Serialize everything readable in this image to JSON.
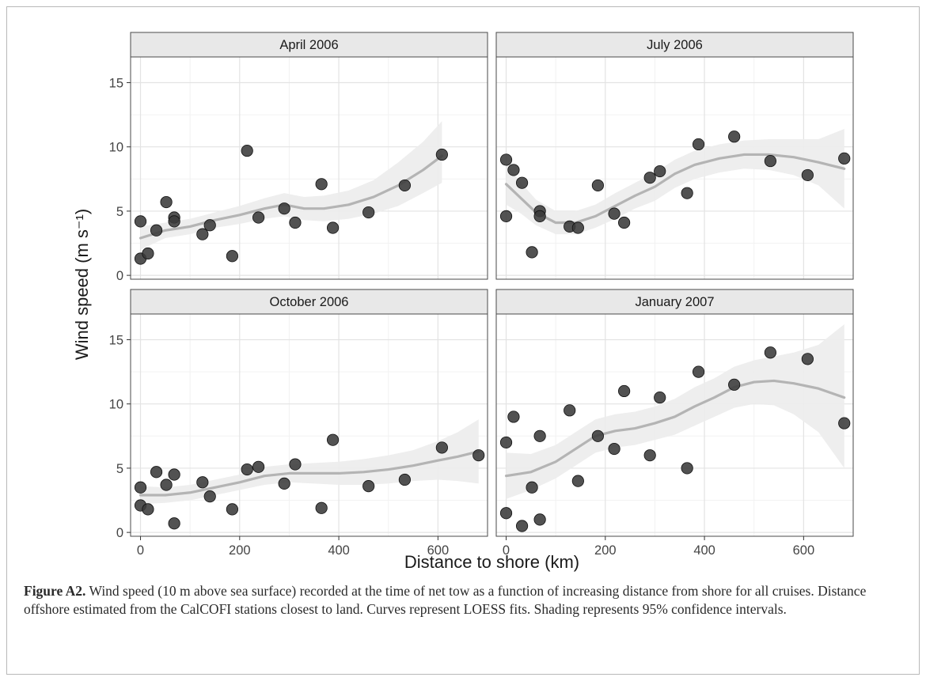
{
  "figure": {
    "caption_label": "Figure A2.",
    "caption_text": "Wind speed (10 m above sea surface) recorded at the time of net tow as a function of increasing distance from shore for all cruises. Distance offshore estimated from the CalCOFI stations closest to land. Curves represent LOESS fits. Shading represents 95% confidence intervals."
  },
  "chart_data": {
    "type": "scatter",
    "xlabel": "Distance to shore (km)",
    "ylabel": "Wind speed (m s⁻¹)",
    "xlim": [
      -20,
      700
    ],
    "ylim": [
      -0.3,
      17
    ],
    "x_ticks": [
      0,
      200,
      400,
      600
    ],
    "y_ticks": [
      0,
      5,
      10,
      15
    ],
    "grid": true,
    "colors": {
      "point": "#3a3a3a",
      "fit_line": "#b4b4b4",
      "ci_band": "#ececec",
      "strip": "#e8e8e8"
    },
    "panels": [
      {
        "title": "April 2006",
        "points": [
          [
            0,
            4.2
          ],
          [
            0,
            1.3
          ],
          [
            15,
            1.7
          ],
          [
            32,
            3.5
          ],
          [
            52,
            5.7
          ],
          [
            68,
            4.5
          ],
          [
            68,
            4.2
          ],
          [
            125,
            3.2
          ],
          [
            140,
            3.9
          ],
          [
            185,
            1.5
          ],
          [
            215,
            9.7
          ],
          [
            238,
            4.5
          ],
          [
            290,
            5.2
          ],
          [
            312,
            4.1
          ],
          [
            365,
            7.1
          ],
          [
            388,
            3.7
          ],
          [
            460,
            4.9
          ],
          [
            533,
            7.0
          ],
          [
            608,
            9.4
          ]
        ],
        "fit": [
          [
            0,
            2.9
          ],
          [
            50,
            3.5
          ],
          [
            100,
            3.8
          ],
          [
            150,
            4.3
          ],
          [
            200,
            4.7
          ],
          [
            250,
            5.2
          ],
          [
            290,
            5.5
          ],
          [
            330,
            5.2
          ],
          [
            370,
            5.2
          ],
          [
            420,
            5.5
          ],
          [
            470,
            6.1
          ],
          [
            520,
            7.0
          ],
          [
            570,
            8.2
          ],
          [
            608,
            9.3
          ]
        ],
        "ci_lower": [
          [
            0,
            2.0
          ],
          [
            50,
            2.9
          ],
          [
            100,
            3.2
          ],
          [
            150,
            3.7
          ],
          [
            200,
            4.0
          ],
          [
            250,
            4.4
          ],
          [
            290,
            4.6
          ],
          [
            330,
            4.3
          ],
          [
            370,
            4.2
          ],
          [
            420,
            4.4
          ],
          [
            470,
            4.8
          ],
          [
            520,
            5.4
          ],
          [
            570,
            6.4
          ],
          [
            608,
            7.2
          ]
        ],
        "ci_upper": [
          [
            0,
            3.8
          ],
          [
            50,
            4.1
          ],
          [
            100,
            4.4
          ],
          [
            150,
            4.9
          ],
          [
            200,
            5.4
          ],
          [
            250,
            6.0
          ],
          [
            290,
            6.4
          ],
          [
            330,
            6.1
          ],
          [
            370,
            6.2
          ],
          [
            420,
            6.6
          ],
          [
            470,
            7.4
          ],
          [
            520,
            8.8
          ],
          [
            570,
            10.4
          ],
          [
            608,
            12.0
          ]
        ]
      },
      {
        "title": "July 2006",
        "points": [
          [
            0,
            9.0
          ],
          [
            0,
            4.6
          ],
          [
            15,
            8.2
          ],
          [
            32,
            7.2
          ],
          [
            52,
            1.8
          ],
          [
            68,
            5.0
          ],
          [
            68,
            4.6
          ],
          [
            128,
            3.8
          ],
          [
            145,
            3.7
          ],
          [
            185,
            7.0
          ],
          [
            218,
            4.8
          ],
          [
            238,
            4.1
          ],
          [
            290,
            7.6
          ],
          [
            310,
            8.1
          ],
          [
            365,
            6.4
          ],
          [
            388,
            10.2
          ],
          [
            460,
            10.8
          ],
          [
            533,
            8.9
          ],
          [
            608,
            7.8
          ],
          [
            682,
            9.1
          ]
        ],
        "fit": [
          [
            0,
            7.1
          ],
          [
            30,
            6.0
          ],
          [
            60,
            4.9
          ],
          [
            100,
            4.1
          ],
          [
            140,
            4.1
          ],
          [
            180,
            4.6
          ],
          [
            220,
            5.4
          ],
          [
            260,
            6.2
          ],
          [
            300,
            6.9
          ],
          [
            340,
            7.9
          ],
          [
            380,
            8.6
          ],
          [
            430,
            9.1
          ],
          [
            480,
            9.4
          ],
          [
            530,
            9.4
          ],
          [
            580,
            9.2
          ],
          [
            630,
            8.8
          ],
          [
            682,
            8.3
          ]
        ],
        "ci_lower": [
          [
            0,
            5.5
          ],
          [
            30,
            4.8
          ],
          [
            60,
            3.9
          ],
          [
            100,
            3.2
          ],
          [
            140,
            3.2
          ],
          [
            180,
            3.7
          ],
          [
            220,
            4.4
          ],
          [
            260,
            5.2
          ],
          [
            300,
            5.8
          ],
          [
            340,
            6.8
          ],
          [
            380,
            7.5
          ],
          [
            430,
            8.0
          ],
          [
            480,
            8.3
          ],
          [
            530,
            8.2
          ],
          [
            580,
            7.8
          ],
          [
            630,
            7.0
          ],
          [
            682,
            5.2
          ]
        ],
        "ci_upper": [
          [
            0,
            8.7
          ],
          [
            30,
            7.2
          ],
          [
            60,
            5.9
          ],
          [
            100,
            5.0
          ],
          [
            140,
            5.0
          ],
          [
            180,
            5.5
          ],
          [
            220,
            6.4
          ],
          [
            260,
            7.2
          ],
          [
            300,
            8.0
          ],
          [
            340,
            9.0
          ],
          [
            380,
            9.7
          ],
          [
            430,
            10.2
          ],
          [
            480,
            10.5
          ],
          [
            530,
            10.6
          ],
          [
            580,
            10.6
          ],
          [
            630,
            10.6
          ],
          [
            682,
            11.4
          ]
        ]
      },
      {
        "title": "October 2006",
        "points": [
          [
            0,
            3.5
          ],
          [
            0,
            2.1
          ],
          [
            15,
            1.8
          ],
          [
            32,
            4.7
          ],
          [
            52,
            3.7
          ],
          [
            68,
            4.5
          ],
          [
            68,
            0.7
          ],
          [
            125,
            3.9
          ],
          [
            140,
            2.8
          ],
          [
            185,
            1.8
          ],
          [
            215,
            4.9
          ],
          [
            238,
            5.1
          ],
          [
            290,
            3.8
          ],
          [
            312,
            5.3
          ],
          [
            365,
            1.9
          ],
          [
            388,
            7.2
          ],
          [
            460,
            3.6
          ],
          [
            533,
            4.1
          ],
          [
            608,
            6.6
          ],
          [
            682,
            6.0
          ]
        ],
        "fit": [
          [
            0,
            2.9
          ],
          [
            50,
            2.9
          ],
          [
            100,
            3.1
          ],
          [
            150,
            3.5
          ],
          [
            200,
            3.9
          ],
          [
            250,
            4.4
          ],
          [
            300,
            4.6
          ],
          [
            350,
            4.6
          ],
          [
            400,
            4.6
          ],
          [
            450,
            4.7
          ],
          [
            500,
            4.9
          ],
          [
            550,
            5.2
          ],
          [
            600,
            5.6
          ],
          [
            640,
            5.9
          ],
          [
            682,
            6.3
          ]
        ],
        "ci_lower": [
          [
            0,
            2.2
          ],
          [
            50,
            2.3
          ],
          [
            100,
            2.5
          ],
          [
            150,
            2.9
          ],
          [
            200,
            3.3
          ],
          [
            250,
            3.7
          ],
          [
            300,
            3.9
          ],
          [
            350,
            3.8
          ],
          [
            400,
            3.7
          ],
          [
            450,
            3.7
          ],
          [
            500,
            3.8
          ],
          [
            550,
            4.0
          ],
          [
            600,
            4.1
          ],
          [
            640,
            4.0
          ],
          [
            682,
            3.8
          ]
        ],
        "ci_upper": [
          [
            0,
            3.6
          ],
          [
            50,
            3.5
          ],
          [
            100,
            3.7
          ],
          [
            150,
            4.1
          ],
          [
            200,
            4.5
          ],
          [
            250,
            5.1
          ],
          [
            300,
            5.3
          ],
          [
            350,
            5.4
          ],
          [
            400,
            5.5
          ],
          [
            450,
            5.7
          ],
          [
            500,
            6.0
          ],
          [
            550,
            6.4
          ],
          [
            600,
            7.1
          ],
          [
            640,
            7.8
          ],
          [
            682,
            8.8
          ]
        ]
      },
      {
        "title": "January 2007",
        "points": [
          [
            0,
            7.0
          ],
          [
            0,
            1.5
          ],
          [
            15,
            9.0
          ],
          [
            32,
            0.5
          ],
          [
            52,
            3.5
          ],
          [
            68,
            7.5
          ],
          [
            68,
            1.0
          ],
          [
            128,
            9.5
          ],
          [
            145,
            4.0
          ],
          [
            185,
            7.5
          ],
          [
            218,
            6.5
          ],
          [
            238,
            11.0
          ],
          [
            290,
            6.0
          ],
          [
            310,
            10.5
          ],
          [
            365,
            5.0
          ],
          [
            388,
            12.5
          ],
          [
            460,
            11.5
          ],
          [
            533,
            14.0
          ],
          [
            608,
            13.5
          ],
          [
            682,
            8.5
          ]
        ],
        "fit": [
          [
            0,
            4.4
          ],
          [
            50,
            4.7
          ],
          [
            100,
            5.5
          ],
          [
            140,
            6.5
          ],
          [
            180,
            7.5
          ],
          [
            220,
            7.9
          ],
          [
            260,
            8.1
          ],
          [
            300,
            8.5
          ],
          [
            340,
            9.0
          ],
          [
            380,
            9.8
          ],
          [
            420,
            10.5
          ],
          [
            460,
            11.3
          ],
          [
            500,
            11.7
          ],
          [
            540,
            11.8
          ],
          [
            580,
            11.6
          ],
          [
            630,
            11.2
          ],
          [
            682,
            10.5
          ]
        ],
        "ci_lower": [
          [
            0,
            2.6
          ],
          [
            50,
            3.3
          ],
          [
            100,
            4.2
          ],
          [
            140,
            5.2
          ],
          [
            180,
            6.2
          ],
          [
            220,
            6.6
          ],
          [
            260,
            6.8
          ],
          [
            300,
            7.2
          ],
          [
            340,
            7.6
          ],
          [
            380,
            8.3
          ],
          [
            420,
            9.0
          ],
          [
            460,
            9.7
          ],
          [
            500,
            10.0
          ],
          [
            540,
            9.9
          ],
          [
            580,
            9.2
          ],
          [
            630,
            7.8
          ],
          [
            682,
            5.0
          ]
        ],
        "ci_upper": [
          [
            0,
            6.2
          ],
          [
            50,
            6.1
          ],
          [
            100,
            6.8
          ],
          [
            140,
            7.8
          ],
          [
            180,
            8.8
          ],
          [
            220,
            9.2
          ],
          [
            260,
            9.4
          ],
          [
            300,
            9.8
          ],
          [
            340,
            10.4
          ],
          [
            380,
            11.3
          ],
          [
            420,
            12.0
          ],
          [
            460,
            12.9
          ],
          [
            500,
            13.4
          ],
          [
            540,
            13.7
          ],
          [
            580,
            14.0
          ],
          [
            630,
            14.6
          ],
          [
            682,
            16.2
          ]
        ]
      }
    ]
  }
}
